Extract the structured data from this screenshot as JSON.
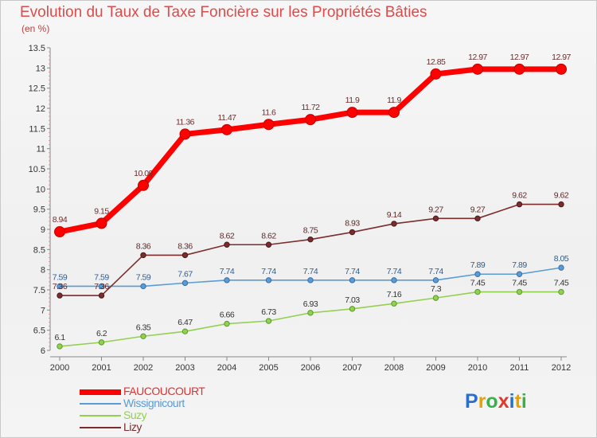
{
  "title": "Evolution du Taux de Taxe Foncière sur les Propriétés Bâties",
  "unit_label": "(en %)",
  "logo_text": "Proxiti",
  "chart_data": {
    "type": "line",
    "title": "Evolution du Taux de Taxe Foncière sur les Propriétés Bâties",
    "ylabel": "(en %)",
    "xlabel": "",
    "ylim": [
      6,
      13.5
    ],
    "y_ticks": [
      "6",
      "6.5",
      "7",
      "7.5",
      "8",
      "8.5",
      "9",
      "9.5",
      "10",
      "10.5",
      "11",
      "11.5",
      "12",
      "12.5",
      "13",
      "13.5"
    ],
    "categories": [
      "2000",
      "2001",
      "2002",
      "2003",
      "2004",
      "2005",
      "2006",
      "2007",
      "2008",
      "2009",
      "2010",
      "2011",
      "2012"
    ],
    "grid": false,
    "legend_position": "bottom-left",
    "series": [
      {
        "name": "FAUCOUCOURT",
        "color": "#ff0000",
        "values": [
          8.94,
          9.15,
          10.09,
          11.36,
          11.47,
          11.6,
          11.72,
          11.9,
          11.9,
          12.85,
          12.97,
          12.97,
          12.97
        ]
      },
      {
        "name": "Wissignicourt",
        "color": "#5b9bd5",
        "values": [
          7.59,
          7.59,
          7.59,
          7.67,
          7.74,
          7.74,
          7.74,
          7.74,
          7.74,
          7.74,
          7.89,
          7.89,
          8.05
        ]
      },
      {
        "name": "Suzy",
        "color": "#92d050",
        "values": [
          6.1,
          6.2,
          6.35,
          6.47,
          6.66,
          6.73,
          6.93,
          7.03,
          7.16,
          7.3,
          7.45,
          7.45,
          7.45
        ]
      },
      {
        "name": "Lizy",
        "color": "#7b2c2c",
        "values": [
          7.36,
          7.36,
          8.36,
          8.36,
          8.62,
          8.62,
          8.75,
          8.93,
          9.14,
          9.27,
          9.27,
          9.62,
          9.62
        ]
      }
    ]
  }
}
